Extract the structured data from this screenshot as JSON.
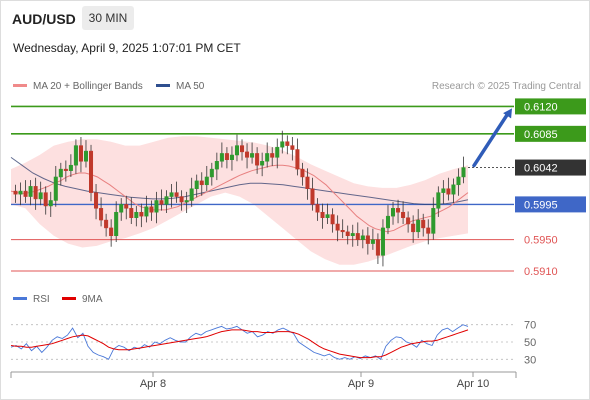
{
  "header": {
    "symbol": "AUD/USD",
    "timeframe": "30 MIN",
    "datetime": "Wednesday, April 9, 2025 1:07:01 PM CET"
  },
  "legend": {
    "ma20_label": "MA 20 + Bollinger Bands",
    "ma50_label": "MA 50",
    "copyright": "Research © 2025 Trading Central",
    "rsi_label": "RSI",
    "rsi_ma_label": "9MA"
  },
  "colors": {
    "green": "#3c9a1b",
    "blue": "#3f67c7",
    "red": "#e05555",
    "candle_up": "#2e9a2e",
    "candle_down": "#c0392b",
    "band_fill": "#fde0e0",
    "ma50": "#2f3e6e",
    "current_bg": "#333333"
  },
  "chart_data": [
    {
      "type": "candlestick",
      "ylim": [
        0.5896,
        0.6132
      ],
      "x_ticks": [
        "Apr 8",
        "Apr 9",
        "Apr 10"
      ],
      "levels": [
        {
          "label": "0.6120",
          "value": 0.612,
          "style": "resistance"
        },
        {
          "label": "0.6085",
          "value": 0.6085,
          "style": "resistance"
        },
        {
          "label": "0.6042",
          "value": 0.6042,
          "style": "current"
        },
        {
          "label": "0.5995",
          "value": 0.5995,
          "style": "pivot"
        },
        {
          "label": "0.5950",
          "value": 0.595,
          "style": "support"
        },
        {
          "label": "0.5910",
          "value": 0.591,
          "style": "support"
        }
      ],
      "arrow": {
        "from": 0.6042,
        "to": 0.612,
        "direction": "up"
      },
      "close_series": [
        0.6008,
        0.6012,
        0.6005,
        0.6018,
        0.6002,
        0.601,
        0.5993,
        0.6,
        0.603,
        0.604,
        0.6038,
        0.6045,
        0.607,
        0.605,
        0.6063,
        0.601,
        0.599,
        0.5975,
        0.5965,
        0.5955,
        0.5985,
        0.5995,
        0.599,
        0.5978,
        0.5985,
        0.598,
        0.5992,
        0.5985,
        0.6,
        0.5995,
        0.6005,
        0.601,
        0.6005,
        0.5998,
        0.6,
        0.6015,
        0.6025,
        0.602,
        0.603,
        0.604,
        0.605,
        0.606,
        0.6052,
        0.6058,
        0.607,
        0.6062,
        0.6055,
        0.606,
        0.6045,
        0.605,
        0.606,
        0.6055,
        0.6068,
        0.6075,
        0.607,
        0.6065,
        0.604,
        0.603,
        0.6015,
        0.5995,
        0.5985,
        0.5978,
        0.5982,
        0.597,
        0.5962,
        0.596,
        0.5955,
        0.5958,
        0.595,
        0.5955,
        0.5945,
        0.595,
        0.593,
        0.5965,
        0.598,
        0.599,
        0.5985,
        0.5978,
        0.597,
        0.596,
        0.5975,
        0.5965,
        0.5958,
        0.599,
        0.601,
        0.6015,
        0.6008,
        0.602,
        0.603,
        0.6042
      ],
      "ma20_series": [
        0.6012,
        0.601,
        0.6009,
        0.601,
        0.6012,
        0.6015,
        0.6018,
        0.6022,
        0.6025,
        0.603,
        0.6033,
        0.6035,
        0.6035,
        0.6033,
        0.603,
        0.6025,
        0.602,
        0.6014,
        0.6008,
        0.6002,
        0.5996,
        0.5992,
        0.599,
        0.5988,
        0.5988,
        0.5988,
        0.599,
        0.5992,
        0.5996,
        0.6,
        0.6004,
        0.6008,
        0.6012,
        0.6016,
        0.602,
        0.6024,
        0.6028,
        0.6032,
        0.6035,
        0.6038,
        0.604,
        0.6042,
        0.6044,
        0.6045,
        0.6045,
        0.6044,
        0.6042,
        0.604,
        0.6036,
        0.6032,
        0.6026,
        0.602,
        0.6012,
        0.6004,
        0.5996,
        0.5988,
        0.598,
        0.5974,
        0.5968,
        0.5964,
        0.5962,
        0.596,
        0.5962,
        0.5966,
        0.597,
        0.5974,
        0.5976,
        0.5978,
        0.598,
        0.5984,
        0.5988,
        0.5992,
        0.5998,
        0.6004,
        0.601
      ],
      "ma50_series": [
        0.6055,
        0.6045,
        0.6035,
        0.6028,
        0.6022,
        0.6018,
        0.6015,
        0.6012,
        0.601,
        0.6008,
        0.6006,
        0.6004,
        0.6003,
        0.6002,
        0.6002,
        0.6003,
        0.6005,
        0.6008,
        0.6011,
        0.6014,
        0.6017,
        0.602,
        0.6022,
        0.6022,
        0.6021,
        0.602,
        0.6018,
        0.6016,
        0.6014,
        0.6012,
        0.601,
        0.6008,
        0.6006,
        0.6004,
        0.6002,
        0.6,
        0.5998,
        0.5996,
        0.5995,
        0.5995,
        0.5996,
        0.5998,
        0.6001
      ],
      "bb_upper": [
        0.604,
        0.6048,
        0.6058,
        0.607,
        0.6075,
        0.6078,
        0.6078,
        0.6075,
        0.607,
        0.607,
        0.6075,
        0.608,
        0.6082,
        0.6082,
        0.608,
        0.6078,
        0.6076,
        0.6074,
        0.607,
        0.6064,
        0.6056,
        0.6046,
        0.6038,
        0.603,
        0.6022,
        0.6018,
        0.6016,
        0.6016,
        0.602,
        0.6026,
        0.6034,
        0.604,
        0.6045
      ],
      "bb_lower": [
        0.5995,
        0.599,
        0.597,
        0.5955,
        0.5945,
        0.594,
        0.5942,
        0.5948,
        0.5952,
        0.5958,
        0.5965,
        0.5975,
        0.5985,
        0.5995,
        0.6005,
        0.601,
        0.6005,
        0.5995,
        0.598,
        0.5965,
        0.595,
        0.5935,
        0.5925,
        0.5918,
        0.5918,
        0.5922,
        0.5928,
        0.5935,
        0.5942,
        0.5948,
        0.5952,
        0.5955,
        0.5958
      ]
    },
    {
      "type": "line",
      "name": "RSI",
      "ylim": [
        20,
        80
      ],
      "y_ticks": [
        70,
        50,
        30
      ],
      "rsi_series": [
        44,
        46,
        42,
        48,
        40,
        45,
        38,
        44,
        52,
        56,
        54,
        58,
        66,
        55,
        60,
        45,
        38,
        35,
        33,
        30,
        42,
        46,
        44,
        40,
        44,
        42,
        47,
        44,
        50,
        48,
        52,
        55,
        52,
        50,
        50,
        56,
        60,
        58,
        62,
        64,
        66,
        68,
        65,
        66,
        68,
        64,
        60,
        62,
        56,
        58,
        62,
        60,
        64,
        66,
        63,
        60,
        50,
        46,
        42,
        38,
        36,
        34,
        36,
        32,
        30,
        32,
        30,
        33,
        31,
        34,
        32,
        34,
        30,
        45,
        52,
        56,
        55,
        50,
        48,
        44,
        52,
        48,
        46,
        58,
        64,
        66,
        62,
        66,
        70,
        68
      ],
      "ma9_series": [
        46,
        45,
        45,
        44,
        44,
        45,
        46,
        47,
        48,
        50,
        52,
        54,
        56,
        57,
        58,
        57,
        54,
        51,
        48,
        44,
        42,
        41,
        41,
        41,
        42,
        43,
        44,
        45,
        46,
        47,
        48,
        49,
        50,
        51,
        52,
        53,
        54,
        55,
        56,
        58,
        60,
        62,
        63,
        64,
        64,
        64,
        63,
        62,
        62,
        61,
        61,
        61,
        62,
        62,
        62,
        61,
        59,
        56,
        53,
        49,
        45,
        42,
        40,
        38,
        36,
        35,
        34,
        33,
        32,
        32,
        32,
        33,
        33,
        35,
        38,
        41,
        44,
        46,
        48,
        49,
        50,
        51,
        51,
        52,
        54,
        56,
        58,
        60,
        62,
        64
      ]
    }
  ]
}
